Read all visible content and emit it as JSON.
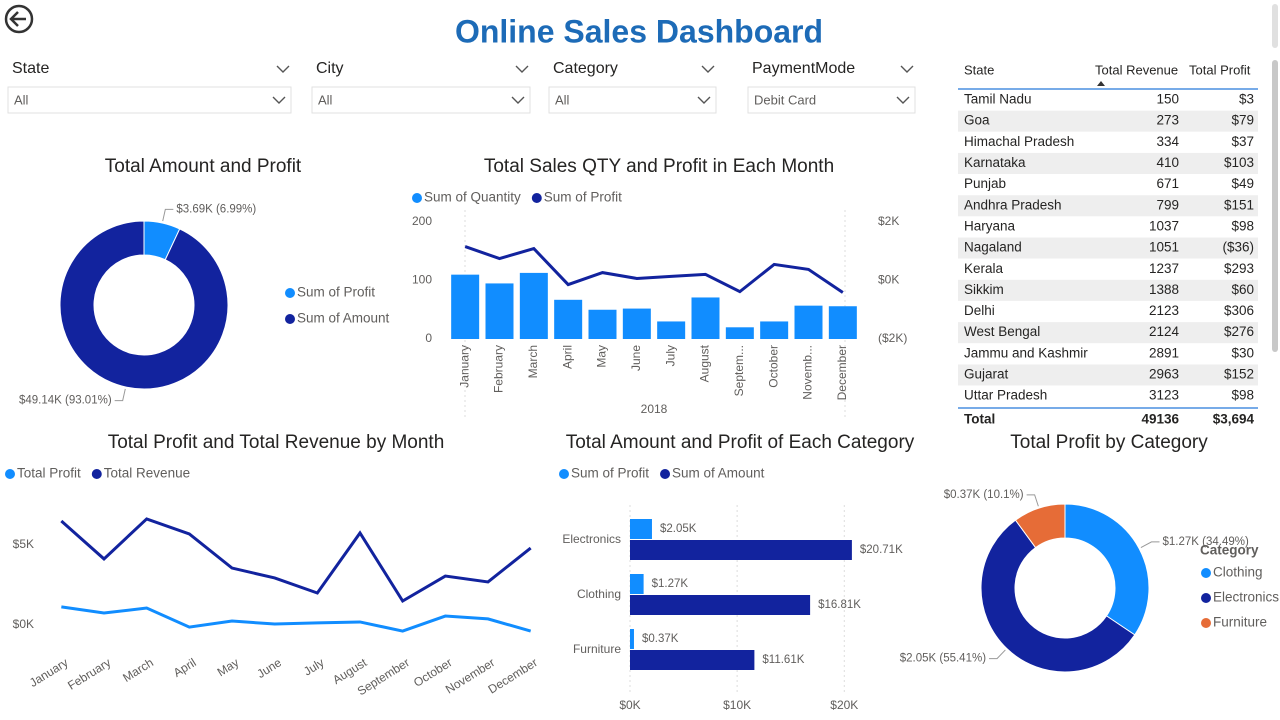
{
  "title": "Online Sales Dashboard",
  "filters": [
    {
      "label": "State",
      "value": "All"
    },
    {
      "label": "City",
      "value": "All"
    },
    {
      "label": "Category",
      "value": "All"
    },
    {
      "label": "PaymentMode",
      "value": "Debit Card"
    }
  ],
  "table": {
    "columns": [
      "State",
      "Total Revenue",
      "Total Profit"
    ],
    "rows": [
      [
        "Tamil Nadu",
        150,
        "$3"
      ],
      [
        "Goa",
        273,
        "$79"
      ],
      [
        "Himachal Pradesh",
        334,
        "$37"
      ],
      [
        "Karnataka",
        410,
        "$103"
      ],
      [
        "Punjab",
        671,
        "$49"
      ],
      [
        "Andhra Pradesh",
        799,
        "$151"
      ],
      [
        "Haryana",
        1037,
        "$98"
      ],
      [
        "Nagaland",
        1051,
        "($36)"
      ],
      [
        "Kerala",
        1237,
        "$293"
      ],
      [
        "Sikkim",
        1388,
        "$60"
      ],
      [
        "Delhi",
        2123,
        "$306"
      ],
      [
        "West Bengal",
        2124,
        "$276"
      ],
      [
        "Jammu and Kashmir",
        2891,
        "$30"
      ],
      [
        "Gujarat",
        2963,
        "$152"
      ],
      [
        "Uttar Pradesh",
        3123,
        "$98"
      ]
    ],
    "total": [
      "Total",
      49136,
      "$3,694"
    ]
  },
  "chart_data": [
    {
      "type": "pie",
      "title": "Total Amount and Profit",
      "categories": [
        "Sum of Profit",
        "Sum of Amount"
      ],
      "values": [
        3690,
        49140
      ],
      "value_labels": [
        "$3.69K (6.99%)",
        "$49.14K (93.01%)"
      ],
      "colors": [
        "#118dff",
        "#12239e"
      ],
      "donut": true
    },
    {
      "type": "combo",
      "title": "Total Sales QTY and Profit in Each Month",
      "x_label": "2018",
      "categories": [
        "January",
        "February",
        "March",
        "April",
        "May",
        "June",
        "July",
        "August",
        "Septem...",
        "October",
        "Novemb...",
        "December"
      ],
      "series": [
        {
          "name": "Sum of Quantity",
          "color": "#118dff",
          "values": [
            110,
            95,
            113,
            67,
            50,
            52,
            30,
            71,
            20,
            30,
            57,
            56
          ]
        },
        {
          "name": "Sum of Profit",
          "color": "#12239e",
          "axis": "y2",
          "values": [
            1160,
            750,
            1090,
            -140,
            270,
            70,
            140,
            210,
            -380,
            550,
            380,
            -410
          ]
        }
      ],
      "ylim": [
        0,
        200
      ],
      "yticks": [
        0,
        100,
        200
      ],
      "y2lim": [
        -2000,
        2000
      ],
      "y2ticks": [
        {
          "value": 2000,
          "label": "$2K"
        },
        {
          "value": 0,
          "label": "$0K"
        },
        {
          "value": -2000,
          "label": "($2K)"
        }
      ]
    },
    {
      "type": "line",
      "title": "Total Profit and Total Revenue by Month",
      "categories": [
        "January",
        "February",
        "March",
        "April",
        "May",
        "June",
        "July",
        "August",
        "September",
        "October",
        "November",
        "December"
      ],
      "series": [
        {
          "name": "Total Profit",
          "color": "#118dff",
          "values": [
            1130,
            750,
            1060,
            -130,
            250,
            60,
            130,
            190,
            -380,
            560,
            380,
            -380
          ]
        },
        {
          "name": "Total Revenue",
          "color": "#12239e",
          "values": [
            6500,
            4130,
            6630,
            5690,
            3560,
            2940,
            2000,
            5750,
            1500,
            3060,
            2690,
            4810
          ]
        }
      ],
      "ylim": [
        -1000,
        8000
      ],
      "yticks": [
        {
          "value": 0,
          "label": "$0K"
        },
        {
          "value": 5000,
          "label": "$5K"
        }
      ]
    },
    {
      "type": "bar",
      "orientation": "horizontal",
      "title": "Total Amount and Profit of Each Category",
      "categories": [
        "Electronics",
        "Clothing",
        "Furniture"
      ],
      "series": [
        {
          "name": "Sum of Profit",
          "color": "#118dff",
          "values": [
            2050,
            1270,
            370
          ],
          "value_labels": [
            "$2.05K",
            "$1.27K",
            "$0.37K"
          ]
        },
        {
          "name": "Sum of Amount",
          "color": "#12239e",
          "values": [
            20710,
            16810,
            11610
          ],
          "value_labels": [
            "$20.71K",
            "$16.81K",
            "$11.61K"
          ]
        }
      ],
      "xlim": [
        0,
        21000
      ],
      "xticks": [
        {
          "value": 0,
          "label": "$0K"
        },
        {
          "value": 10000,
          "label": "$10K"
        },
        {
          "value": 20000,
          "label": "$20K"
        }
      ]
    },
    {
      "type": "pie",
      "title": "Total Profit by Category",
      "legend_title": "Category",
      "categories": [
        "Clothing",
        "Electronics",
        "Furniture"
      ],
      "values": [
        1270,
        2050,
        370
      ],
      "value_labels": [
        "$1.27K (34.49%)",
        "$2.05K (55.41%)",
        "$0.37K (10.1%)"
      ],
      "colors": [
        "#118dff",
        "#12239e",
        "#e66c37"
      ],
      "donut": true
    }
  ]
}
